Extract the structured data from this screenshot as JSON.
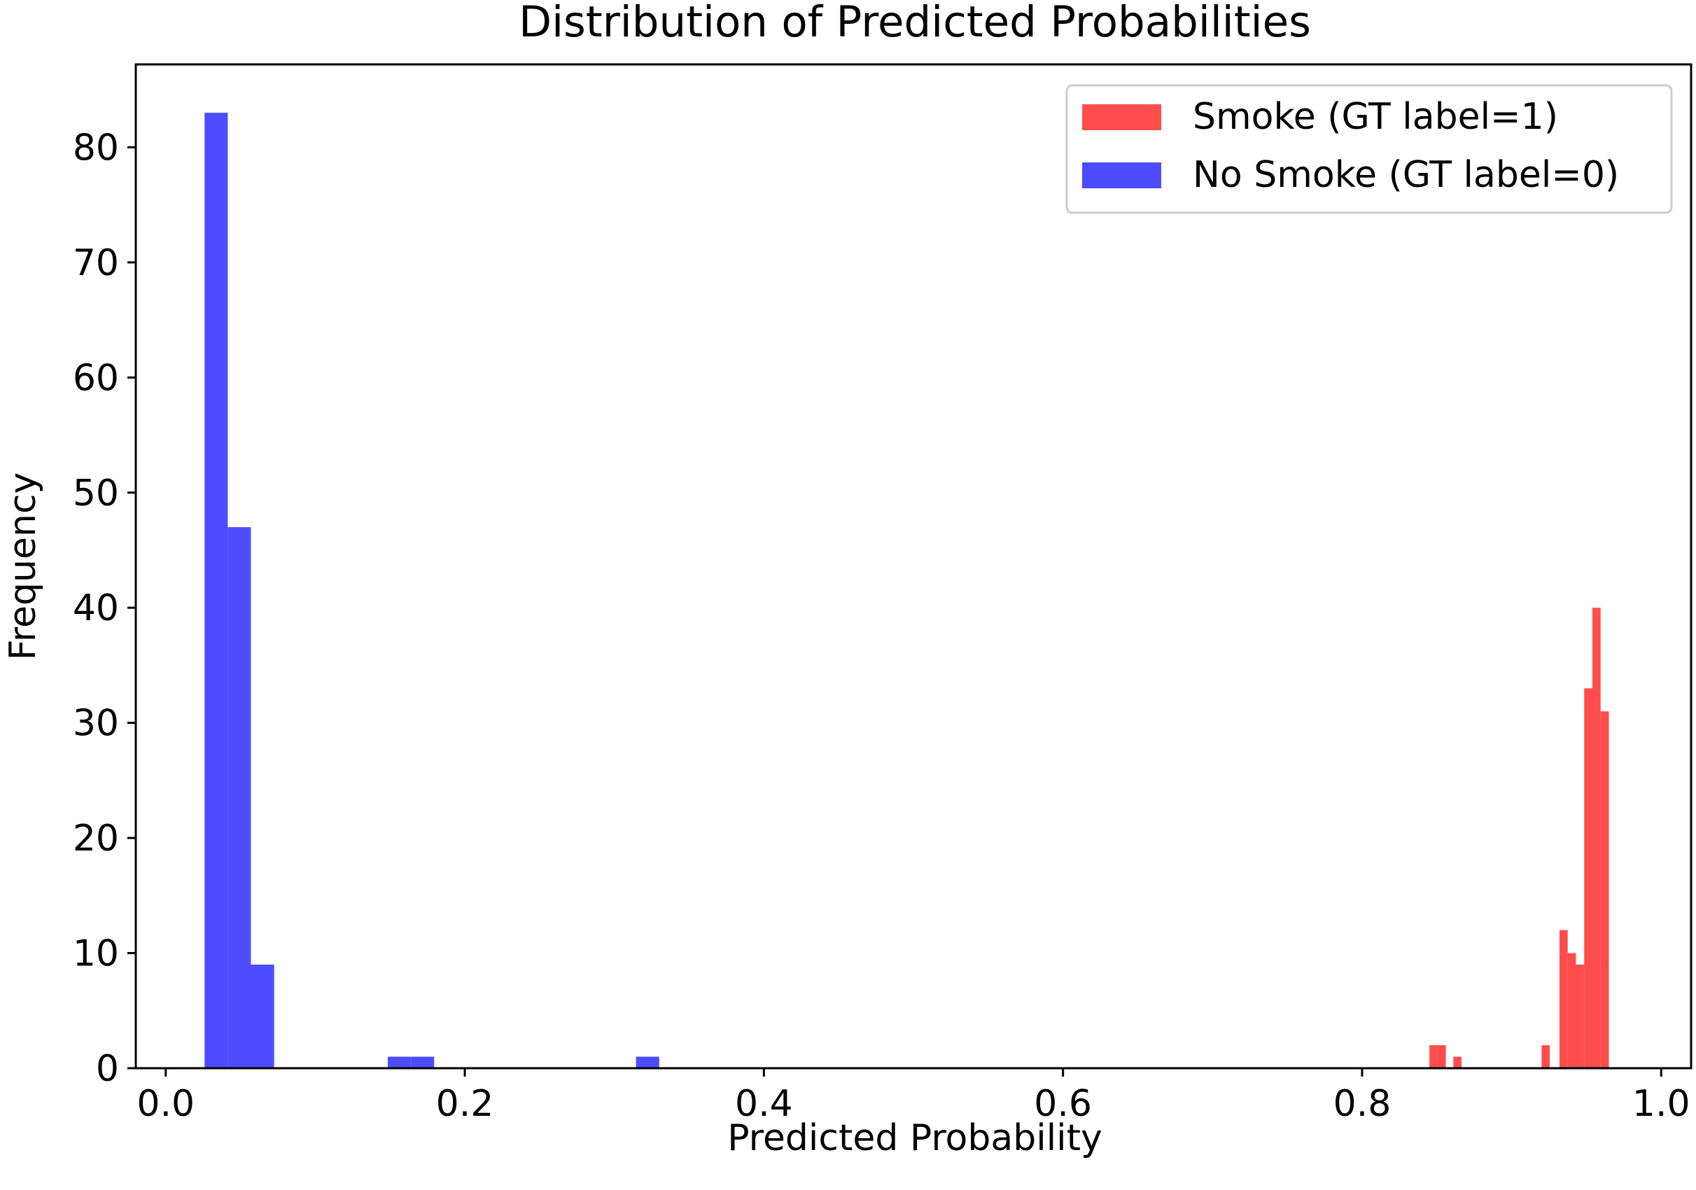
{
  "chart_data": {
    "type": "bar",
    "title": "Distribution of Predicted Probabilities",
    "xlabel": "Predicted Probability",
    "ylabel": "Frequency",
    "xlim": [
      -0.02,
      1.02
    ],
    "ylim": [
      0,
      87.2
    ],
    "xticks": [
      0.0,
      0.2,
      0.4,
      0.6,
      0.8,
      1.0
    ],
    "xtick_labels": [
      "0.0",
      "0.2",
      "0.4",
      "0.6",
      "0.8",
      "1.0"
    ],
    "yticks": [
      0,
      10,
      20,
      30,
      40,
      50,
      60,
      70,
      80
    ],
    "ytick_labels": [
      "0",
      "10",
      "20",
      "30",
      "40",
      "50",
      "60",
      "70",
      "80"
    ],
    "grid": false,
    "legend_position": "top-right",
    "series": [
      {
        "name": "Smoke (GT label=1)",
        "color": "#ff4d4d",
        "bins": [
          {
            "x0": 0.845,
            "x1": 0.8505,
            "count": 2
          },
          {
            "x0": 0.8505,
            "x1": 0.856,
            "count": 2
          },
          {
            "x0": 0.861,
            "x1": 0.8665,
            "count": 1
          },
          {
            "x0": 0.92,
            "x1": 0.9255,
            "count": 2
          },
          {
            "x0": 0.932,
            "x1": 0.9375,
            "count": 12
          },
          {
            "x0": 0.9375,
            "x1": 0.943,
            "count": 10
          },
          {
            "x0": 0.943,
            "x1": 0.9485,
            "count": 9
          },
          {
            "x0": 0.9485,
            "x1": 0.954,
            "count": 33
          },
          {
            "x0": 0.954,
            "x1": 0.9595,
            "count": 40
          },
          {
            "x0": 0.9595,
            "x1": 0.965,
            "count": 31
          }
        ]
      },
      {
        "name": "No Smoke (GT label=0)",
        "color": "#4d4dff",
        "bins": [
          {
            "x0": 0.026,
            "x1": 0.0415,
            "count": 83
          },
          {
            "x0": 0.0415,
            "x1": 0.057,
            "count": 47
          },
          {
            "x0": 0.057,
            "x1": 0.0725,
            "count": 9
          },
          {
            "x0": 0.1485,
            "x1": 0.164,
            "count": 1
          },
          {
            "x0": 0.164,
            "x1": 0.1795,
            "count": 1
          },
          {
            "x0": 0.3145,
            "x1": 0.33,
            "count": 1
          }
        ]
      }
    ]
  }
}
